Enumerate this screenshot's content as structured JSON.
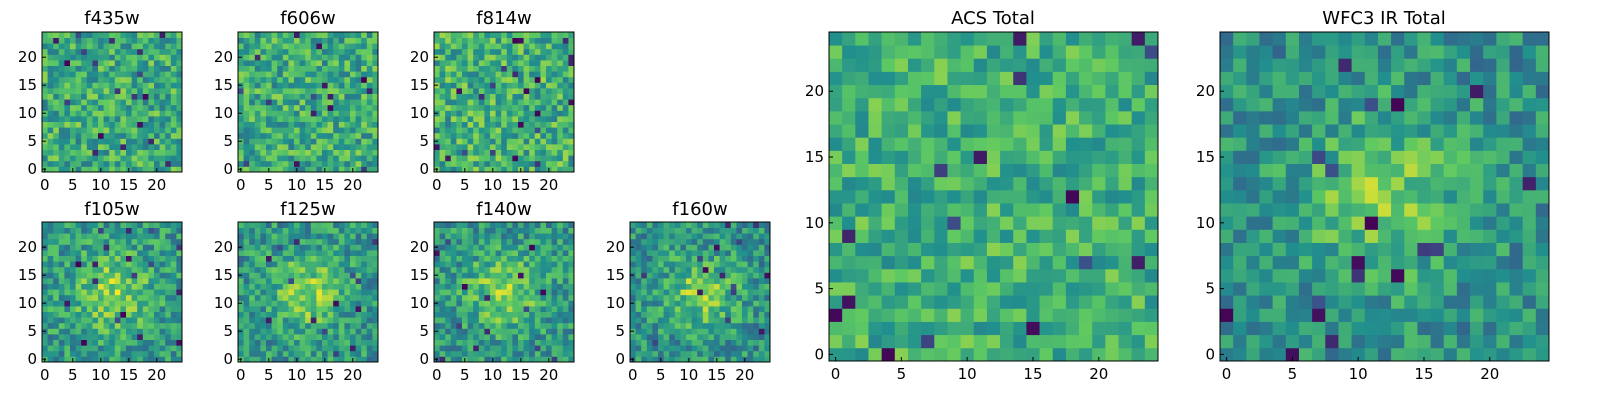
{
  "figure": {
    "colormap": [
      "#440154",
      "#3b528b",
      "#21908d",
      "#5dc863",
      "#fde725"
    ]
  },
  "chart_data": [
    {
      "type": "heatmap",
      "title": "f435w",
      "xlim": [
        0,
        24
      ],
      "ylim": [
        0,
        24
      ],
      "xticks": [
        "0",
        "5",
        "10",
        "15",
        "20"
      ],
      "yticks": [
        "0",
        "5",
        "10",
        "15",
        "20"
      ],
      "grid": false,
      "pattern": "noise",
      "mean": 0.62,
      "spread": 0.22
    },
    {
      "type": "heatmap",
      "title": "f606w",
      "xlim": [
        0,
        24
      ],
      "ylim": [
        0,
        24
      ],
      "xticks": [
        "0",
        "5",
        "10",
        "15",
        "20"
      ],
      "yticks": [
        "0",
        "5",
        "10",
        "15",
        "20"
      ],
      "grid": false,
      "pattern": "noise",
      "mean": 0.62,
      "spread": 0.22
    },
    {
      "type": "heatmap",
      "title": "f814w",
      "xlim": [
        0,
        24
      ],
      "ylim": [
        0,
        24
      ],
      "xticks": [
        "0",
        "5",
        "10",
        "15",
        "20"
      ],
      "yticks": [
        "0",
        "5",
        "10",
        "15",
        "20"
      ],
      "grid": false,
      "pattern": "noise",
      "mean": 0.64,
      "spread": 0.22
    },
    {
      "type": "heatmap",
      "title": "f105w",
      "xlim": [
        0,
        24
      ],
      "ylim": [
        0,
        24
      ],
      "xticks": [
        "0",
        "5",
        "10",
        "15",
        "20"
      ],
      "yticks": [
        "0",
        "5",
        "10",
        "15",
        "20"
      ],
      "grid": false,
      "pattern": "source",
      "mean": 0.6,
      "spread": 0.2
    },
    {
      "type": "heatmap",
      "title": "f125w",
      "xlim": [
        0,
        24
      ],
      "ylim": [
        0,
        24
      ],
      "xticks": [
        "0",
        "5",
        "10",
        "15",
        "20"
      ],
      "yticks": [
        "0",
        "5",
        "10",
        "15",
        "20"
      ],
      "grid": false,
      "pattern": "source",
      "mean": 0.58,
      "spread": 0.2
    },
    {
      "type": "heatmap",
      "title": "f140w",
      "xlim": [
        0,
        24
      ],
      "ylim": [
        0,
        24
      ],
      "xticks": [
        "0",
        "5",
        "10",
        "15",
        "20"
      ],
      "yticks": [
        "0",
        "5",
        "10",
        "15",
        "20"
      ],
      "grid": false,
      "pattern": "source",
      "mean": 0.58,
      "spread": 0.2
    },
    {
      "type": "heatmap",
      "title": "f160w",
      "xlim": [
        0,
        24
      ],
      "ylim": [
        0,
        24
      ],
      "xticks": [
        "0",
        "5",
        "10",
        "15",
        "20"
      ],
      "yticks": [
        "0",
        "5",
        "10",
        "15",
        "20"
      ],
      "grid": false,
      "pattern": "source",
      "mean": 0.56,
      "spread": 0.2
    },
    {
      "type": "heatmap",
      "title": "ACS Total",
      "xlim": [
        0,
        24
      ],
      "ylim": [
        0,
        24
      ],
      "xticks": [
        "0",
        "5",
        "10",
        "15",
        "20"
      ],
      "yticks": [
        "0",
        "5",
        "10",
        "15",
        "20"
      ],
      "grid": false,
      "pattern": "noise",
      "mean": 0.64,
      "spread": 0.18
    },
    {
      "type": "heatmap",
      "title": "WFC3 IR Total",
      "xlim": [
        0,
        24
      ],
      "ylim": [
        0,
        24
      ],
      "xticks": [
        "0",
        "5",
        "10",
        "15",
        "20"
      ],
      "yticks": [
        "0",
        "5",
        "10",
        "15",
        "20"
      ],
      "grid": false,
      "pattern": "source",
      "mean": 0.55,
      "spread": 0.18
    }
  ]
}
